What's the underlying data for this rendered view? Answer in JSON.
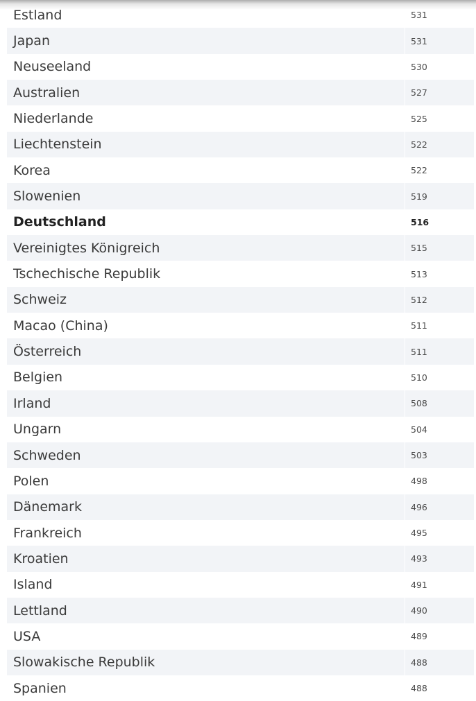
{
  "ranking": {
    "rows": [
      {
        "country": "Estland",
        "score": "531",
        "highlight": false
      },
      {
        "country": "Japan",
        "score": "531",
        "highlight": false
      },
      {
        "country": "Neuseeland",
        "score": "530",
        "highlight": false
      },
      {
        "country": "Australien",
        "score": "527",
        "highlight": false
      },
      {
        "country": "Niederlande",
        "score": "525",
        "highlight": false
      },
      {
        "country": "Liechtenstein",
        "score": "522",
        "highlight": false
      },
      {
        "country": "Korea",
        "score": "522",
        "highlight": false
      },
      {
        "country": "Slowenien",
        "score": "519",
        "highlight": false
      },
      {
        "country": "Deutschland",
        "score": "516",
        "highlight": true
      },
      {
        "country": "Vereinigtes Königreich",
        "score": "515",
        "highlight": false
      },
      {
        "country": "Tschechische Republik",
        "score": "513",
        "highlight": false
      },
      {
        "country": "Schweiz",
        "score": "512",
        "highlight": false
      },
      {
        "country": "Macao (China)",
        "score": "511",
        "highlight": false
      },
      {
        "country": "Österreich",
        "score": "511",
        "highlight": false
      },
      {
        "country": "Belgien",
        "score": "510",
        "highlight": false
      },
      {
        "country": "Irland",
        "score": "508",
        "highlight": false
      },
      {
        "country": "Ungarn",
        "score": "504",
        "highlight": false
      },
      {
        "country": "Schweden",
        "score": "503",
        "highlight": false
      },
      {
        "country": "Polen",
        "score": "498",
        "highlight": false
      },
      {
        "country": "Dänemark",
        "score": "496",
        "highlight": false
      },
      {
        "country": "Frankreich",
        "score": "495",
        "highlight": false
      },
      {
        "country": "Kroatien",
        "score": "493",
        "highlight": false
      },
      {
        "country": "Island",
        "score": "491",
        "highlight": false
      },
      {
        "country": "Lettland",
        "score": "490",
        "highlight": false
      },
      {
        "country": "USA",
        "score": "489",
        "highlight": false
      },
      {
        "country": "Slowakische Republik",
        "score": "488",
        "highlight": false
      },
      {
        "country": "Spanien",
        "score": "488",
        "highlight": false
      }
    ]
  },
  "colors": {
    "stripe": "#f2f4f7",
    "text": "#3a3a3a"
  }
}
